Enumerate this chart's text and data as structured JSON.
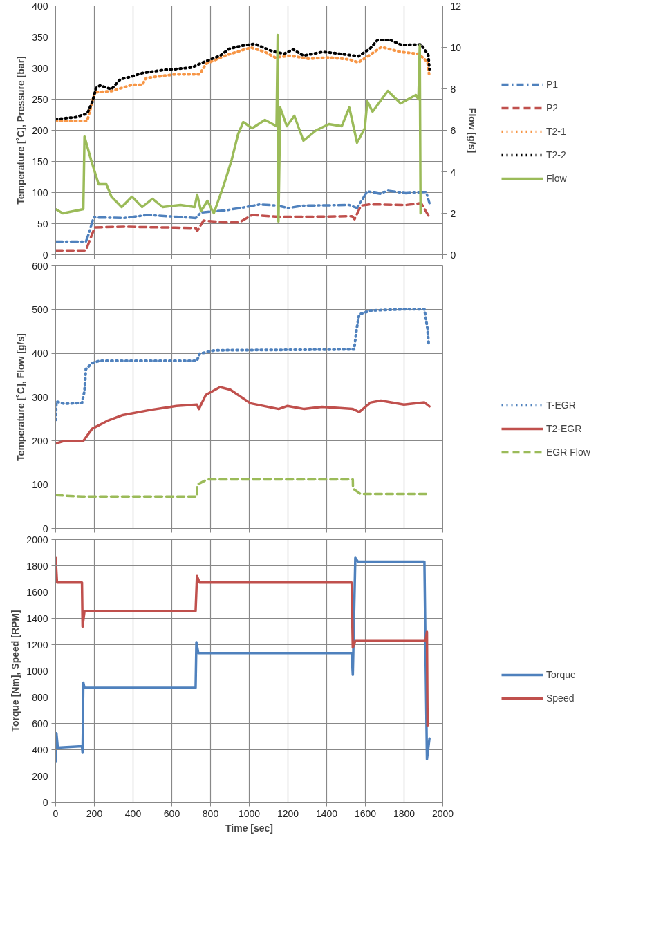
{
  "chart_data": [
    {
      "type": "line",
      "ylabel": "Temperature [˚C], Pressure [bar]",
      "y2label": "Flow [g/s]",
      "xlim": [
        0,
        2000
      ],
      "xticks": [
        0,
        200,
        400,
        600,
        800,
        1000,
        1200,
        1400,
        1600,
        1800,
        2000
      ],
      "ylim": [
        0,
        400
      ],
      "yticks": [
        0,
        50,
        100,
        150,
        200,
        250,
        300,
        350,
        400
      ],
      "y2lim": [
        0,
        12
      ],
      "y2ticks": [
        0,
        2,
        4,
        6,
        8,
        10,
        12
      ],
      "grid": true,
      "legend": "right",
      "tick_labels": "y",
      "series": [
        {
          "name": "P1",
          "color": "#4f81bd",
          "line_style": "dashdot",
          "x": [
            0,
            156,
            169,
            196,
            354,
            473,
            724,
            751,
            870,
            989,
            1055,
            1147,
            1200,
            1280,
            1517,
            1557,
            1610,
            1676,
            1716,
            1809,
            1914,
            1931
          ],
          "values": [
            21,
            21,
            32,
            60,
            59,
            64,
            59,
            68,
            71,
            77,
            81,
            79,
            75,
            79,
            80,
            75,
            102,
            98,
            103,
            99,
            101,
            83
          ]
        },
        {
          "name": "P2",
          "color": "#c0504d",
          "line_style": "dashed",
          "x": [
            0,
            156,
            202,
            354,
            724,
            731,
            764,
            870,
            949,
            1015,
            1147,
            1280,
            1531,
            1544,
            1577,
            1623,
            1809,
            1888,
            1931
          ],
          "values": [
            7,
            7,
            44,
            45,
            43,
            38,
            55,
            52,
            52,
            64,
            61,
            61,
            62,
            57,
            79,
            81,
            80,
            83,
            60
          ]
        },
        {
          "name": "T2-1",
          "color": "#f79646",
          "line_style": "dotted",
          "x": [
            0,
            163,
            202,
            288,
            394,
            447,
            467,
            618,
            744,
            777,
            883,
            1009,
            1081,
            1134,
            1213,
            1306,
            1412,
            1517,
            1564,
            1623,
            1683,
            1782,
            1874,
            1921,
            1931
          ],
          "values": [
            215,
            215,
            261,
            263,
            273,
            273,
            284,
            290,
            290,
            307,
            321,
            333,
            326,
            317,
            320,
            315,
            317,
            314,
            309,
            321,
            334,
            326,
            323,
            310,
            285
          ]
        },
        {
          "name": "T2-2",
          "color": "#000000",
          "line_style": "dotted",
          "x": [
            0,
            103,
            163,
            189,
            209,
            229,
            288,
            334,
            388,
            447,
            559,
            638,
            705,
            751,
            850,
            896,
            962,
            1028,
            1120,
            1180,
            1227,
            1280,
            1379,
            1445,
            1517,
            1564,
            1623,
            1663,
            1729,
            1789,
            1888,
            1925,
            1931
          ],
          "values": [
            218,
            221,
            227,
            245,
            268,
            272,
            266,
            282,
            286,
            292,
            297,
            299,
            301,
            308,
            320,
            331,
            336,
            339,
            327,
            323,
            330,
            320,
            326,
            324,
            321,
            319,
            331,
            345,
            345,
            337,
            338,
            321,
            298
          ]
        },
        {
          "name": "Flow",
          "color": "#9bbb59",
          "line_style": "solid",
          "axis": "y2",
          "x": [
            0,
            37,
            143,
            149,
            182,
            222,
            262,
            288,
            341,
            394,
            447,
            500,
            553,
            645,
            718,
            731,
            751,
            784,
            817,
            870,
            910,
            942,
            969,
            1015,
            1081,
            1141,
            1147,
            1151,
            1160,
            1194,
            1233,
            1280,
            1346,
            1412,
            1478,
            1517,
            1557,
            1597,
            1610,
            1637,
            1716,
            1782,
            1861,
            1874,
            1881,
            1885
          ],
          "values": [
            2.2,
            2.0,
            2.2,
            5.7,
            4.6,
            3.4,
            3.4,
            2.8,
            2.3,
            2.8,
            2.3,
            2.7,
            2.3,
            2.4,
            2.3,
            2.9,
            2.1,
            2.6,
            2.0,
            3.4,
            4.6,
            5.8,
            6.4,
            6.1,
            6.5,
            6.2,
            10.6,
            1.6,
            7.1,
            6.2,
            6.7,
            5.5,
            6.0,
            6.3,
            6.2,
            7.1,
            5.4,
            6.1,
            7.4,
            6.9,
            7.9,
            7.3,
            7.7,
            7.5,
            10.1,
            2.0
          ]
        }
      ]
    },
    {
      "type": "line",
      "ylabel": "Temperature [˚C], Flow [g/s]",
      "xlim": [
        0,
        2000
      ],
      "xticks": [
        0,
        200,
        400,
        600,
        800,
        1000,
        1200,
        1400,
        1600,
        1800,
        2000
      ],
      "ylim": [
        0,
        600
      ],
      "yticks": [
        0,
        100,
        200,
        300,
        400,
        500,
        600
      ],
      "grid": true,
      "legend": "right",
      "tick_labels": "y",
      "series": [
        {
          "name": "T-EGR",
          "color": "#4f81bd",
          "line_style": "dotted",
          "x": [
            0,
            4,
            44,
            136,
            149,
            156,
            189,
            228,
            730,
            743,
            822,
            1542,
            1555,
            1568,
            1628,
            1813,
            1905,
            1921,
            1927
          ],
          "values": [
            248,
            290,
            285,
            287,
            314,
            364,
            378,
            383,
            383,
            399,
            407,
            409,
            456,
            489,
            498,
            501,
            501,
            456,
            421
          ]
        },
        {
          "name": "T2-EGR",
          "color": "#c0504d",
          "line_style": "solid",
          "x": [
            0,
            44,
            143,
            189,
            268,
            347,
            492,
            624,
            730,
            740,
            776,
            849,
            902,
            1006,
            1152,
            1198,
            1284,
            1376,
            1535,
            1568,
            1628,
            1680,
            1799,
            1905,
            1931
          ],
          "values": [
            194,
            200,
            200,
            228,
            246,
            259,
            271,
            280,
            283,
            273,
            305,
            323,
            317,
            286,
            273,
            280,
            273,
            278,
            273,
            266,
            288,
            292,
            283,
            288,
            279
          ]
        },
        {
          "name": "EGR Flow",
          "color": "#9bbb59",
          "line_style": "dashed",
          "x": [
            0,
            136,
            730,
            731,
            783,
            1535,
            1536,
            1575,
            1931
          ],
          "values": [
            76,
            73,
            73,
            100,
            112,
            112,
            91,
            79,
            79
          ]
        }
      ]
    },
    {
      "type": "line",
      "xlabel": "Time [sec]",
      "ylabel": "Torque [Nm], Speed [RPM]",
      "xlim": [
        0,
        2000
      ],
      "xticks": [
        0,
        200,
        400,
        600,
        800,
        1000,
        1200,
        1400,
        1600,
        1800,
        2000
      ],
      "ylim": [
        0,
        2000
      ],
      "yticks": [
        0,
        200,
        400,
        600,
        800,
        1000,
        1200,
        1400,
        1600,
        1800,
        2000
      ],
      "grid": true,
      "legend": "right",
      "series": [
        {
          "name": "Torque",
          "color": "#4f81bd",
          "line_style": "solid",
          "x": [
            0,
            4,
            11,
            136,
            139,
            143,
            149,
            723,
            727,
            737,
            1529,
            1535,
            1548,
            1561,
            1905,
            1911,
            1918,
            1931
          ],
          "values": [
            307,
            525,
            416,
            426,
            376,
            911,
            871,
            871,
            1218,
            1135,
            1135,
            970,
            1861,
            1832,
            1832,
            1119,
            327,
            485
          ]
        },
        {
          "name": "Speed",
          "color": "#c0504d",
          "line_style": "solid",
          "x": [
            0,
            7,
            136,
            139,
            149,
            723,
            730,
            743,
            1529,
            1535,
            1548,
            1911,
            1918,
            1921
          ],
          "values": [
            1861,
            1673,
            1673,
            1337,
            1455,
            1455,
            1723,
            1673,
            1673,
            1178,
            1228,
            1228,
            1297,
            584
          ]
        }
      ]
    }
  ]
}
